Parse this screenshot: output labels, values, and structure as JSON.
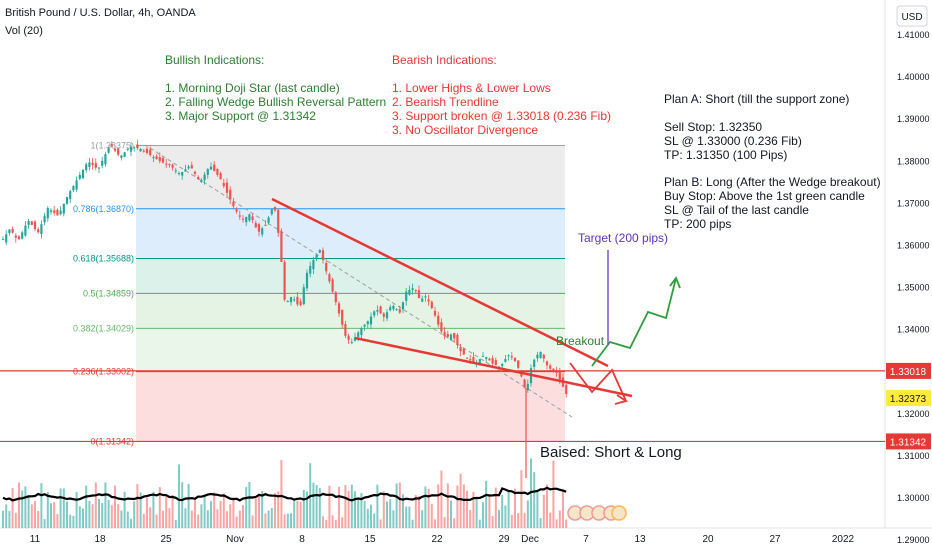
{
  "header": {
    "symbol_title": "British Pound / U.S. Dollar, 4h, OANDA",
    "volume_label": "Vol (20)",
    "currency_button": "USD"
  },
  "annotations": {
    "bullish_title": "Bullish Indications:",
    "bullish_items": [
      "1. Morning Doji Star (last candle)",
      "2. Falling Wedge Bullish Reversal Pattern",
      "3. Major Support @ 1.31342"
    ],
    "bearish_title": "Bearish Indications:",
    "bearish_items": [
      "1. Lower Highs & Lower Lows",
      "2. Bearish Trendline",
      "3. Support broken @ 1.33018 (0.236 Fib)",
      "3. No Oscillator Divergence"
    ],
    "plan_lines": [
      "Plan A: Short (till the support zone)",
      "",
      "Sell Stop: 1.32350",
      "SL @ 1.33000 (0.236 Fib)",
      "TP: 1.31350 (100 Pips)",
      "",
      "Plan B: Long (After the Wedge breakout)",
      "Buy Stop: Above the 1st green candle",
      "SL @ Tail of the last candle",
      "TP: 200 pips"
    ],
    "target_label": "Target (200 pips)",
    "breakout_label": "Breakout",
    "bias_label": "Baised: Short & Long"
  },
  "chart_data": {
    "type": "candlestick",
    "title": "British Pound / U.S. Dollar, 4h, OANDA",
    "y_axis": {
      "ticks": [
        1.29,
        1.3,
        1.31,
        1.32,
        1.33,
        1.34,
        1.35,
        1.36,
        1.37,
        1.38,
        1.39,
        1.4,
        1.41
      ],
      "tick_labels": [
        "1.29000",
        "1.30000",
        "1.31000",
        "1.32000",
        "1.33000",
        "1.34000",
        "1.35000",
        "1.36000",
        "1.37000",
        "1.38000",
        "1.39000",
        "1.40000",
        "1.41000"
      ],
      "range": [
        1.2885,
        1.4155
      ]
    },
    "x_axis": {
      "tick_labels": [
        "11",
        "18",
        "25",
        "Nov",
        "8",
        "15",
        "22",
        "29",
        "Dec",
        "7",
        "13",
        "20",
        "27",
        "2022"
      ]
    },
    "price_labels": [
      {
        "value": 1.33018,
        "text": "1.33018",
        "color": "#e53935"
      },
      {
        "value": 1.32373,
        "text": "1.32373",
        "color": "#ffeb3b"
      },
      {
        "value": 1.31342,
        "text": "1.31342",
        "color": "#e53935"
      }
    ],
    "fib_levels": [
      {
        "ratio": "1",
        "price": 1.38375,
        "text": "1(1.38375)",
        "color": "#9e9e9e"
      },
      {
        "ratio": "0.786",
        "price": 1.3687,
        "text": "0.786(1.36870)",
        "color": "#2196f3"
      },
      {
        "ratio": "0.618",
        "price": 1.35688,
        "text": "0.618(1.35688)",
        "color": "#009688"
      },
      {
        "ratio": "0.5",
        "price": 1.34859,
        "text": "0.5(1.34859)",
        "color": "#4caf50"
      },
      {
        "ratio": "0.382",
        "price": 1.34029,
        "text": "0.382(1.34029)",
        "color": "#66bb6a"
      },
      {
        "ratio": "0.236",
        "price": 1.33002,
        "text": "0.236(1.33002)",
        "color": "#e53935"
      },
      {
        "ratio": "0",
        "price": 1.31342,
        "text": "0(1.31342)",
        "color": "#e53935"
      }
    ],
    "horizontal_lines": [
      1.33018,
      1.31342
    ],
    "price_path": [
      [
        3,
        1.3615
      ],
      [
        10,
        1.364
      ],
      [
        18,
        1.361
      ],
      [
        28,
        1.366
      ],
      [
        38,
        1.363
      ],
      [
        48,
        1.369
      ],
      [
        58,
        1.367
      ],
      [
        68,
        1.372
      ],
      [
        78,
        1.376
      ],
      [
        88,
        1.38
      ],
      [
        98,
        1.378
      ],
      [
        110,
        1.384
      ],
      [
        120,
        1.381
      ],
      [
        130,
        1.3835
      ],
      [
        140,
        1.383
      ],
      [
        150,
        1.3815
      ],
      [
        160,
        1.38
      ],
      [
        170,
        1.379
      ],
      [
        180,
        1.377
      ],
      [
        190,
        1.379
      ],
      [
        200,
        1.375
      ],
      [
        210,
        1.379
      ],
      [
        220,
        1.376
      ],
      [
        228,
        1.372
      ],
      [
        234,
        1.369
      ],
      [
        242,
        1.366
      ],
      [
        250,
        1.3675
      ],
      [
        258,
        1.363
      ],
      [
        266,
        1.365
      ],
      [
        274,
        1.37
      ],
      [
        280,
        1.36
      ],
      [
        285,
        1.346
      ],
      [
        292,
        1.348
      ],
      [
        300,
        1.345
      ],
      [
        306,
        1.353
      ],
      [
        312,
        1.356
      ],
      [
        320,
        1.359
      ],
      [
        326,
        1.354
      ],
      [
        334,
        1.348
      ],
      [
        340,
        1.343
      ],
      [
        346,
        1.338
      ],
      [
        352,
        1.337
      ],
      [
        360,
        1.34
      ],
      [
        368,
        1.342
      ],
      [
        376,
        1.345
      ],
      [
        384,
        1.343
      ],
      [
        392,
        1.346
      ],
      [
        400,
        1.344
      ],
      [
        406,
        1.349
      ],
      [
        414,
        1.35
      ],
      [
        420,
        1.347
      ],
      [
        426,
        1.348
      ],
      [
        434,
        1.344
      ],
      [
        440,
        1.34
      ],
      [
        446,
        1.338
      ],
      [
        452,
        1.339
      ],
      [
        460,
        1.335
      ],
      [
        468,
        1.333
      ],
      [
        476,
        1.332
      ],
      [
        484,
        1.334
      ],
      [
        492,
        1.332
      ],
      [
        500,
        1.331
      ],
      [
        508,
        1.334
      ],
      [
        514,
        1.333
      ],
      [
        520,
        1.33
      ],
      [
        526,
        1.325
      ],
      [
        532,
        1.332
      ],
      [
        540,
        1.335
      ],
      [
        548,
        1.331
      ],
      [
        556,
        1.33
      ],
      [
        562,
        1.327
      ],
      [
        568,
        1.3237
      ]
    ],
    "volume": {
      "moving_average_period": 20
    }
  },
  "colors": {
    "bull_candle": "#26a69a",
    "bear_candle": "#ef5350",
    "annotation_green": "#2e7d32",
    "annotation_red": "#e53935",
    "target_purple": "#7e57c2"
  }
}
